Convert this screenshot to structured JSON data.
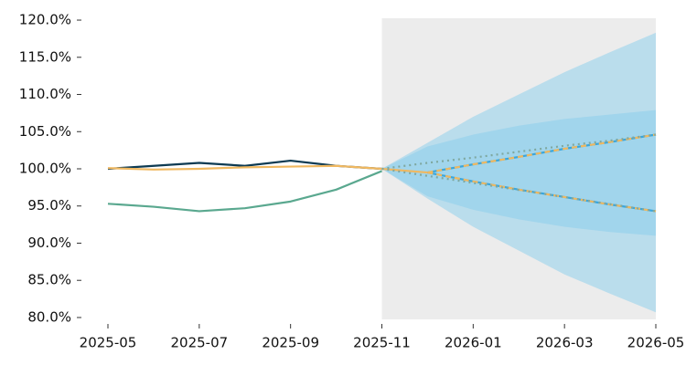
{
  "chart_data": {
    "type": "line",
    "x": [
      "2025-05",
      "2025-06",
      "2025-07",
      "2025-08",
      "2025-09",
      "2025-10",
      "2025-11",
      "2025-12",
      "2026-01",
      "2026-02",
      "2026-03",
      "2026-04",
      "2026-05"
    ],
    "xticks": [
      "2025-05",
      "2025-07",
      "2025-09",
      "2025-11",
      "2026-01",
      "2026-03",
      "2026-05"
    ],
    "ylim": [
      79.75,
      120.25
    ],
    "yticks": [
      {
        "value": 80,
        "label": "80.0%"
      },
      {
        "value": 85,
        "label": "85.0%"
      },
      {
        "value": 90,
        "label": "90.0%"
      },
      {
        "value": 95,
        "label": "95.0%"
      },
      {
        "value": 100,
        "label": "100.0%"
      },
      {
        "value": 105,
        "label": "105.0%"
      },
      {
        "value": 110,
        "label": "110.0%"
      },
      {
        "value": 115,
        "label": "115.0%"
      },
      {
        "value": 120,
        "label": "120.0%"
      }
    ],
    "shaded_span": [
      "2025-11",
      "2026-05"
    ],
    "shade_color": "#ececec",
    "bands": [
      {
        "color": "#87ceeb",
        "opacity": 0.5,
        "lower": [
          null,
          null,
          null,
          null,
          null,
          null,
          100.0,
          96.0,
          92.2,
          89.0,
          85.8,
          83.2,
          80.7
        ],
        "upper": [
          null,
          null,
          null,
          null,
          null,
          null,
          100.0,
          103.5,
          107.0,
          110.0,
          113.0,
          115.7,
          118.3
        ]
      },
      {
        "color": "#87ceeb",
        "opacity": 0.5,
        "lower": [
          null,
          null,
          null,
          null,
          null,
          null,
          100.0,
          96.3,
          94.5,
          93.2,
          92.2,
          91.5,
          91.0
        ],
        "upper": [
          null,
          null,
          null,
          null,
          null,
          null,
          100.0,
          103.0,
          104.6,
          105.8,
          106.7,
          107.3,
          107.9
        ]
      }
    ],
    "series": [
      {
        "color": "#5aa88f",
        "values": [
          95.3,
          94.9,
          94.3,
          94.7,
          95.6,
          97.2,
          99.7,
          null,
          null,
          null,
          null,
          null,
          null
        ]
      },
      {
        "color": "#0d3a52",
        "values": [
          100.0,
          100.4,
          100.8,
          100.4,
          101.1,
          100.4,
          100.0,
          null,
          null,
          null,
          null,
          null,
          null
        ]
      },
      {
        "color": "#f0b860",
        "values": [
          100.1,
          99.9,
          100.0,
          100.2,
          100.3,
          100.4,
          100.0,
          99.5,
          null,
          null,
          null,
          null,
          null
        ]
      },
      {
        "color": "#3aa6dc",
        "values": [
          null,
          null,
          null,
          null,
          null,
          null,
          null,
          99.5,
          100.6,
          101.6,
          102.7,
          103.6,
          104.6
        ]
      },
      {
        "color": "#3aa6dc",
        "values": [
          null,
          null,
          null,
          null,
          null,
          null,
          null,
          99.5,
          98.3,
          97.2,
          96.2,
          95.2,
          94.3
        ]
      },
      {
        "color": "#f0b860",
        "dash": "6 4",
        "values": [
          null,
          null,
          null,
          null,
          null,
          null,
          null,
          99.5,
          100.6,
          101.6,
          102.7,
          103.6,
          104.6
        ]
      },
      {
        "color": "#f0b860",
        "dash": "6 4",
        "values": [
          null,
          null,
          null,
          null,
          null,
          null,
          null,
          99.5,
          98.3,
          97.2,
          96.2,
          95.2,
          94.3
        ]
      },
      {
        "color": "#7fa8a0",
        "dash": "2 4",
        "values": [
          null,
          null,
          null,
          null,
          null,
          null,
          100.0,
          100.8,
          101.5,
          102.3,
          103.1,
          103.8,
          104.6
        ]
      },
      {
        "color": "#7fa8a0",
        "dash": "2 4",
        "values": [
          null,
          null,
          null,
          null,
          null,
          null,
          100.0,
          99.05,
          98.1,
          97.15,
          96.2,
          95.25,
          94.3
        ]
      }
    ]
  }
}
